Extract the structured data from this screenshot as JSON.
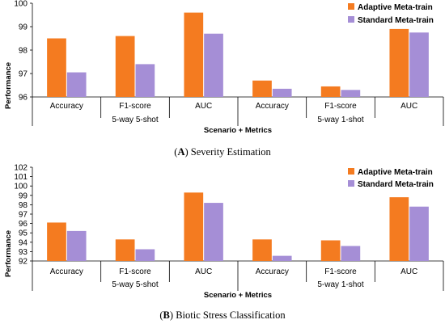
{
  "colors": {
    "adaptive": "#f47b20",
    "standard": "#a58ed6"
  },
  "chart_data": [
    {
      "type": "bar",
      "caption_letter": "A",
      "caption_text": "Severity Estimation",
      "title": "",
      "ylabel": "Performance",
      "xlabel": "Scenario + Metrics",
      "ylim": [
        96,
        100
      ],
      "yticks": [
        96,
        97,
        98,
        99,
        100
      ],
      "legend_position": "top-right",
      "categories": [
        "Accuracy",
        "F1-score",
        "AUC",
        "Accuracy",
        "F1-score",
        "AUC"
      ],
      "groups": [
        "5-way 5-shot",
        "5-way 1-shot"
      ],
      "series": [
        {
          "name": "Adaptive Meta-train",
          "values": [
            98.5,
            98.6,
            99.6,
            96.7,
            96.45,
            98.9
          ]
        },
        {
          "name": "Standard Meta-train",
          "values": [
            97.05,
            97.4,
            98.7,
            96.35,
            96.3,
            98.75
          ]
        }
      ]
    },
    {
      "type": "bar",
      "caption_letter": "B",
      "caption_text": "Biotic Stress Classification",
      "title": "",
      "ylabel": "Performance",
      "xlabel": "Scenario + Metrics",
      "ylim": [
        92,
        102
      ],
      "yticks": [
        92,
        93,
        94,
        95,
        96,
        97,
        98,
        99,
        100,
        101,
        102
      ],
      "legend_position": "top-right",
      "categories": [
        "Accuracy",
        "F1-score",
        "AUC",
        "Accuracy",
        "F1-score",
        "AUC"
      ],
      "groups": [
        "5-way 5-shot",
        "5-way 1-shot"
      ],
      "series": [
        {
          "name": "Adaptive Meta-train",
          "values": [
            96.1,
            94.3,
            99.3,
            94.3,
            94.2,
            98.8
          ]
        },
        {
          "name": "Standard Meta-train",
          "values": [
            95.2,
            93.25,
            98.2,
            92.55,
            93.6,
            97.8
          ]
        }
      ]
    }
  ]
}
